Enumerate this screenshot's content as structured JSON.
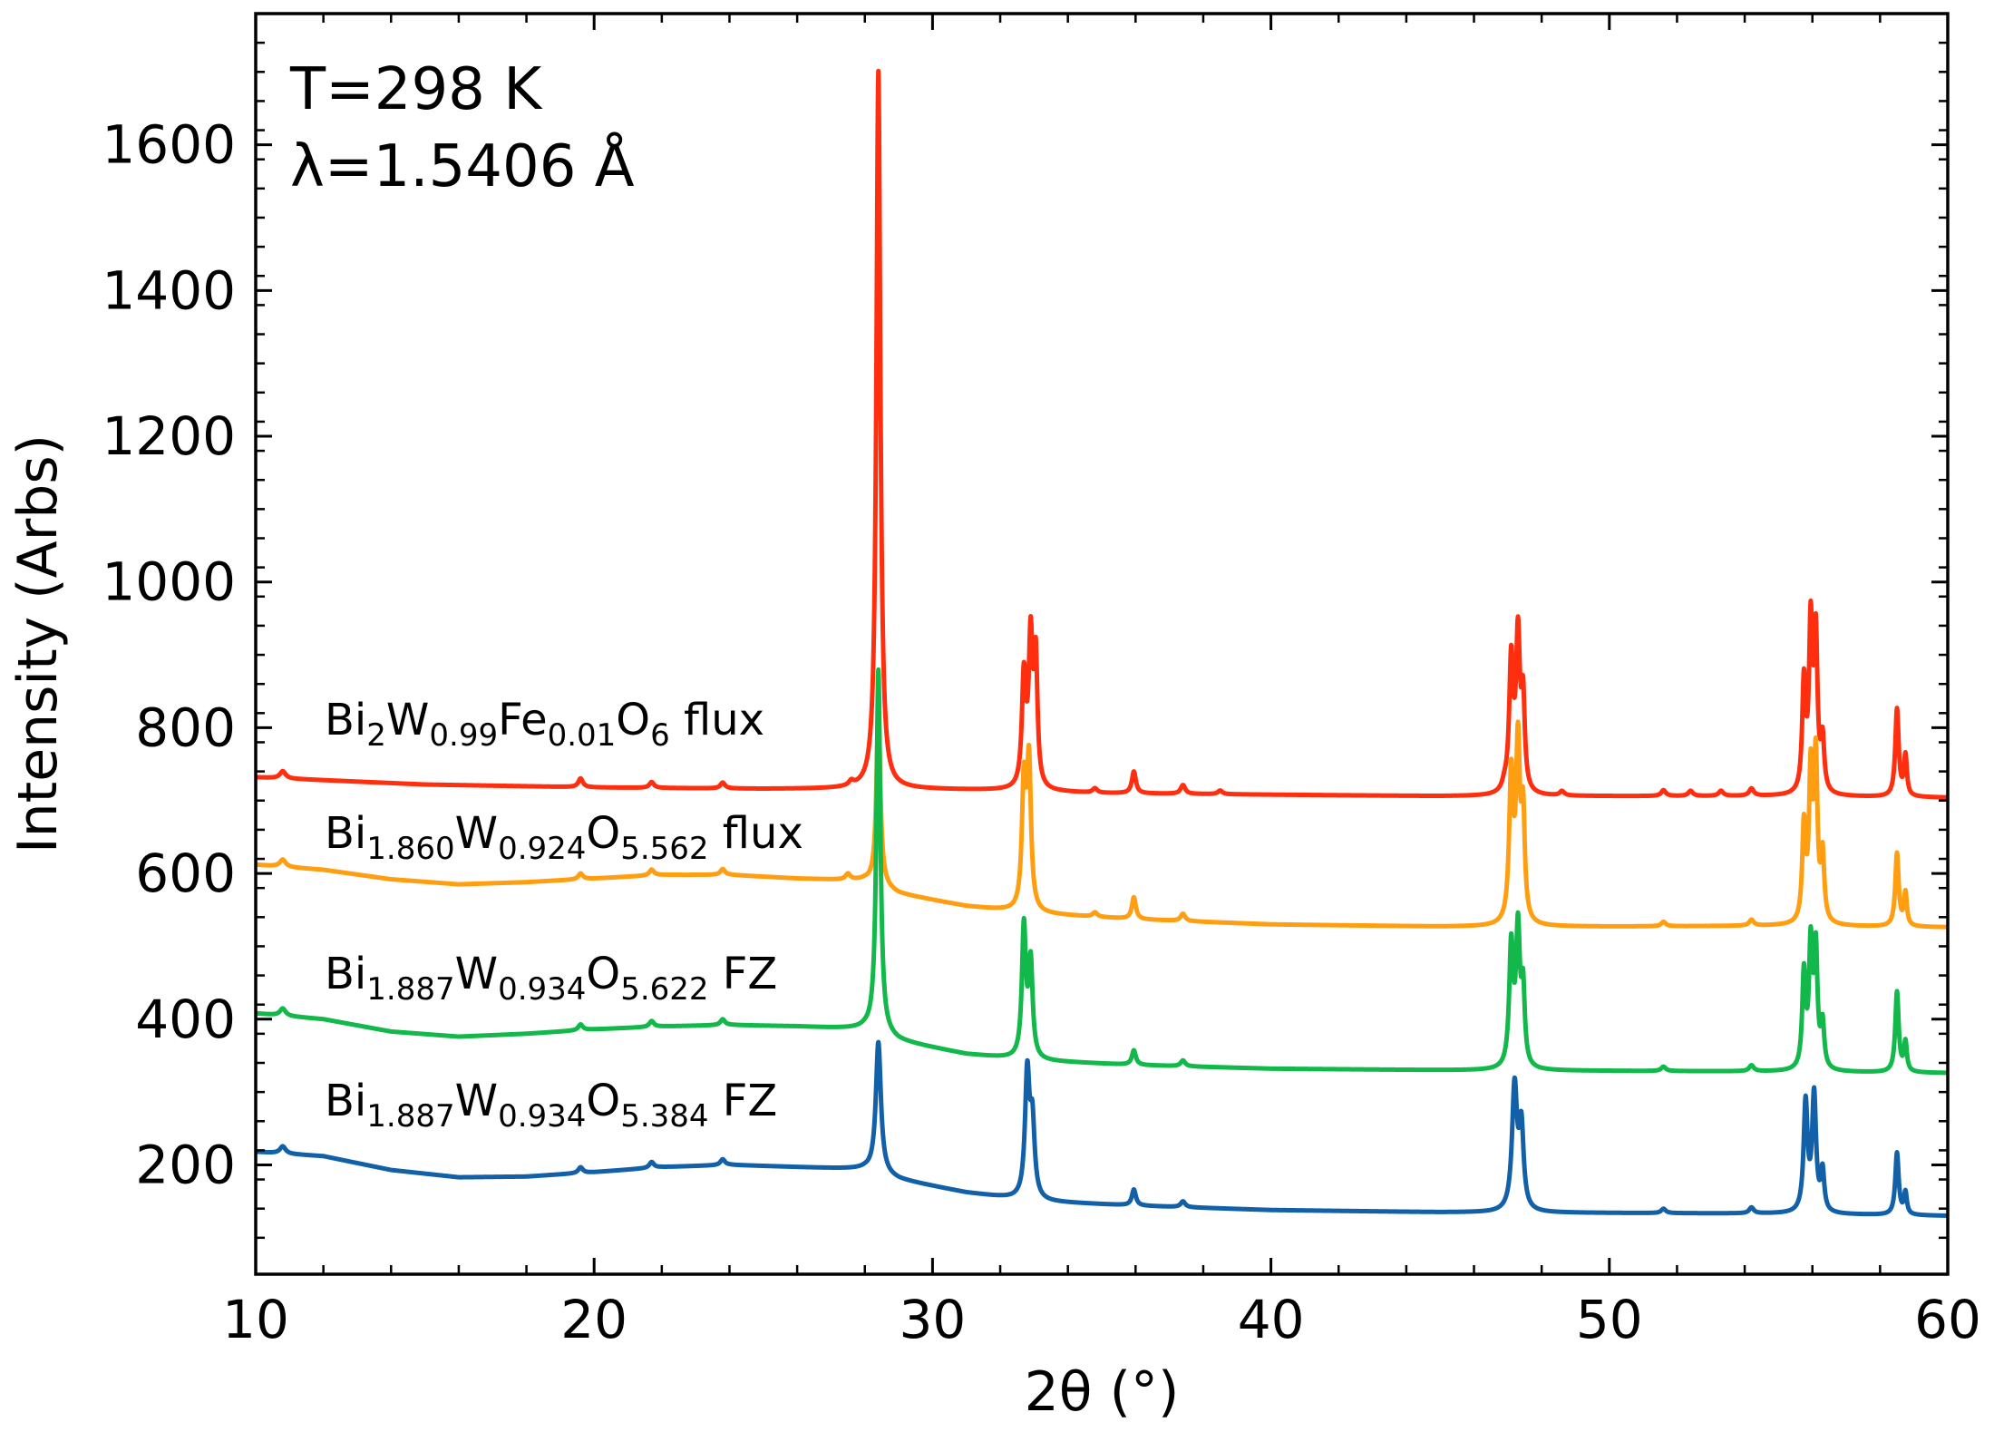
{
  "chart_data": {
    "type": "line",
    "title": "",
    "xlabel": "2θ (°)",
    "ylabel": "Intensity (Arbs)",
    "xlim": [
      10,
      60
    ],
    "ylim": [
      50,
      1780
    ],
    "x_ticks": [
      10,
      20,
      30,
      40,
      50,
      60
    ],
    "x_tick_labels": [
      "10",
      "20",
      "30",
      "40",
      "50",
      "60"
    ],
    "y_ticks": [
      200,
      400,
      600,
      800,
      1000,
      1200,
      1400,
      1600
    ],
    "y_tick_labels": [
      "200",
      "400",
      "600",
      "800",
      "1000",
      "1200",
      "1400",
      "1600"
    ],
    "grid": false,
    "annotations": [
      "T=298 K",
      "λ=1.5406 Å"
    ],
    "series": [
      {
        "name": "Bi2W0.99Fe0.01O6 flux",
        "label_parts": [
          [
            "Bi",
            ""
          ],
          [
            "2",
            "sub"
          ],
          [
            "W",
            ""
          ],
          [
            "0.99",
            "sub"
          ],
          [
            "Fe",
            ""
          ],
          [
            "0.01",
            "sub"
          ],
          [
            "O",
            ""
          ],
          [
            "6",
            "sub"
          ],
          [
            " flux",
            ""
          ]
        ],
        "color": "#ff2e0f",
        "baseline": [
          [
            10,
            732
          ],
          [
            12,
            728
          ],
          [
            15,
            722
          ],
          [
            20,
            718
          ],
          [
            25,
            716
          ],
          [
            28,
            716
          ],
          [
            29,
            716
          ],
          [
            32,
            714
          ],
          [
            35,
            710
          ],
          [
            40,
            708
          ],
          [
            45,
            706
          ],
          [
            50,
            706
          ],
          [
            55,
            706
          ],
          [
            60,
            704
          ]
        ],
        "peaks": [
          [
            10.8,
            10,
            0.1
          ],
          [
            19.6,
            12,
            0.08
          ],
          [
            21.7,
            8,
            0.08
          ],
          [
            23.8,
            8,
            0.08
          ],
          [
            27.6,
            6,
            0.08
          ],
          [
            28.4,
            985,
            0.07
          ],
          [
            32.7,
            150,
            0.07
          ],
          [
            32.9,
            200,
            0.07
          ],
          [
            33.05,
            170,
            0.06
          ],
          [
            34.8,
            6,
            0.08
          ],
          [
            35.95,
            30,
            0.07
          ],
          [
            37.4,
            12,
            0.08
          ],
          [
            38.5,
            5,
            0.08
          ],
          [
            46.9,
            8,
            0.08
          ],
          [
            47.1,
            180,
            0.07
          ],
          [
            47.3,
            210,
            0.07
          ],
          [
            47.45,
            120,
            0.06
          ],
          [
            48.6,
            6,
            0.08
          ],
          [
            51.6,
            8,
            0.08
          ],
          [
            52.4,
            7,
            0.08
          ],
          [
            53.3,
            7,
            0.08
          ],
          [
            54.2,
            10,
            0.08
          ],
          [
            55.75,
            150,
            0.06
          ],
          [
            55.95,
            225,
            0.06
          ],
          [
            56.1,
            210,
            0.06
          ],
          [
            56.3,
            70,
            0.06
          ],
          [
            58.5,
            120,
            0.06
          ],
          [
            58.75,
            55,
            0.05
          ]
        ]
      },
      {
        "name": "Bi1.860W0.924O5.562 flux",
        "label_parts": [
          [
            "Bi",
            ""
          ],
          [
            "1.860",
            "sub"
          ],
          [
            "W",
            ""
          ],
          [
            "0.924",
            "sub"
          ],
          [
            "O",
            ""
          ],
          [
            "5.562",
            "sub"
          ],
          [
            " flux",
            ""
          ]
        ],
        "color": "#ff9e10",
        "baseline": [
          [
            10,
            612
          ],
          [
            12,
            605
          ],
          [
            14,
            592
          ],
          [
            16,
            585
          ],
          [
            18,
            588
          ],
          [
            20,
            593
          ],
          [
            22,
            598
          ],
          [
            24,
            598
          ],
          [
            26,
            593
          ],
          [
            28,
            590
          ],
          [
            29,
            572
          ],
          [
            31,
            555
          ],
          [
            33,
            545
          ],
          [
            36,
            537
          ],
          [
            40,
            530
          ],
          [
            45,
            527
          ],
          [
            50,
            527
          ],
          [
            55,
            528
          ],
          [
            60,
            526
          ]
        ],
        "peaks": [
          [
            10.8,
            10,
            0.1
          ],
          [
            19.6,
            8,
            0.08
          ],
          [
            21.7,
            8,
            0.08
          ],
          [
            23.8,
            8,
            0.08
          ],
          [
            27.5,
            8,
            0.08
          ],
          [
            28.4,
            240,
            0.07
          ],
          [
            32.7,
            170,
            0.07
          ],
          [
            32.85,
            200,
            0.07
          ],
          [
            34.8,
            6,
            0.08
          ],
          [
            35.95,
            30,
            0.07
          ],
          [
            37.4,
            10,
            0.08
          ],
          [
            47.1,
            200,
            0.07
          ],
          [
            47.3,
            240,
            0.07
          ],
          [
            47.45,
            140,
            0.06
          ],
          [
            51.6,
            6,
            0.08
          ],
          [
            54.2,
            8,
            0.08
          ],
          [
            55.75,
            130,
            0.06
          ],
          [
            55.95,
            200,
            0.06
          ],
          [
            56.1,
            220,
            0.06
          ],
          [
            56.3,
            90,
            0.06
          ],
          [
            58.5,
            100,
            0.06
          ],
          [
            58.75,
            45,
            0.05
          ]
        ]
      },
      {
        "name": "Bi1.887W0.934O5.622 FZ",
        "label_parts": [
          [
            "Bi",
            ""
          ],
          [
            "1.887",
            "sub"
          ],
          [
            "W",
            ""
          ],
          [
            "0.934",
            "sub"
          ],
          [
            "O",
            ""
          ],
          [
            "5.622",
            "sub"
          ],
          [
            " FZ",
            ""
          ]
        ],
        "color": "#12b84a",
        "baseline": [
          [
            10,
            408
          ],
          [
            12,
            400
          ],
          [
            14,
            383
          ],
          [
            16,
            376
          ],
          [
            18,
            380
          ],
          [
            20,
            386
          ],
          [
            22,
            390
          ],
          [
            24,
            392
          ],
          [
            26,
            390
          ],
          [
            28,
            386
          ],
          [
            29,
            370
          ],
          [
            31,
            352
          ],
          [
            33,
            343
          ],
          [
            36,
            337
          ],
          [
            40,
            332
          ],
          [
            45,
            330
          ],
          [
            50,
            329
          ],
          [
            55,
            328
          ],
          [
            60,
            326
          ]
        ],
        "peaks": [
          [
            10.8,
            10,
            0.1
          ],
          [
            19.6,
            8,
            0.08
          ],
          [
            21.7,
            8,
            0.08
          ],
          [
            23.8,
            8,
            0.08
          ],
          [
            28.4,
            500,
            0.07
          ],
          [
            32.7,
            180,
            0.07
          ],
          [
            32.9,
            130,
            0.07
          ],
          [
            35.95,
            20,
            0.07
          ],
          [
            37.4,
            8,
            0.08
          ],
          [
            47.1,
            165,
            0.07
          ],
          [
            47.3,
            185,
            0.07
          ],
          [
            47.45,
            100,
            0.06
          ],
          [
            51.6,
            6,
            0.08
          ],
          [
            54.2,
            8,
            0.08
          ],
          [
            55.75,
            130,
            0.06
          ],
          [
            55.95,
            165,
            0.06
          ],
          [
            56.1,
            160,
            0.06
          ],
          [
            56.3,
            60,
            0.06
          ],
          [
            58.5,
            110,
            0.06
          ],
          [
            58.75,
            40,
            0.05
          ]
        ]
      },
      {
        "name": "Bi1.887W0.934O5.384 FZ",
        "label_parts": [
          [
            "Bi",
            ""
          ],
          [
            "1.887",
            "sub"
          ],
          [
            "W",
            ""
          ],
          [
            "0.934",
            "sub"
          ],
          [
            "O",
            ""
          ],
          [
            "5.384",
            "sub"
          ],
          [
            " FZ",
            ""
          ]
        ],
        "color": "#1260a8",
        "baseline": [
          [
            10,
            218
          ],
          [
            12,
            212
          ],
          [
            14,
            193
          ],
          [
            16,
            183
          ],
          [
            18,
            184
          ],
          [
            20,
            190
          ],
          [
            22,
            197
          ],
          [
            24,
            200
          ],
          [
            26,
            197
          ],
          [
            28,
            194
          ],
          [
            29,
            180
          ],
          [
            31,
            162
          ],
          [
            33,
            150
          ],
          [
            36,
            144
          ],
          [
            40,
            138
          ],
          [
            45,
            135
          ],
          [
            50,
            134
          ],
          [
            55,
            133
          ],
          [
            60,
            130
          ]
        ],
        "peaks": [
          [
            10.8,
            10,
            0.1
          ],
          [
            19.6,
            8,
            0.08
          ],
          [
            21.7,
            8,
            0.08
          ],
          [
            23.8,
            8,
            0.08
          ],
          [
            28.4,
            180,
            0.09
          ],
          [
            32.8,
            170,
            0.08
          ],
          [
            32.95,
            100,
            0.08
          ],
          [
            35.95,
            22,
            0.07
          ],
          [
            37.4,
            8,
            0.08
          ],
          [
            47.2,
            170,
            0.09
          ],
          [
            47.4,
            110,
            0.08
          ],
          [
            51.6,
            6,
            0.08
          ],
          [
            54.2,
            8,
            0.08
          ],
          [
            55.8,
            150,
            0.07
          ],
          [
            56.05,
            160,
            0.07
          ],
          [
            56.3,
            55,
            0.06
          ],
          [
            58.5,
            85,
            0.06
          ],
          [
            58.75,
            30,
            0.05
          ]
        ]
      }
    ]
  }
}
